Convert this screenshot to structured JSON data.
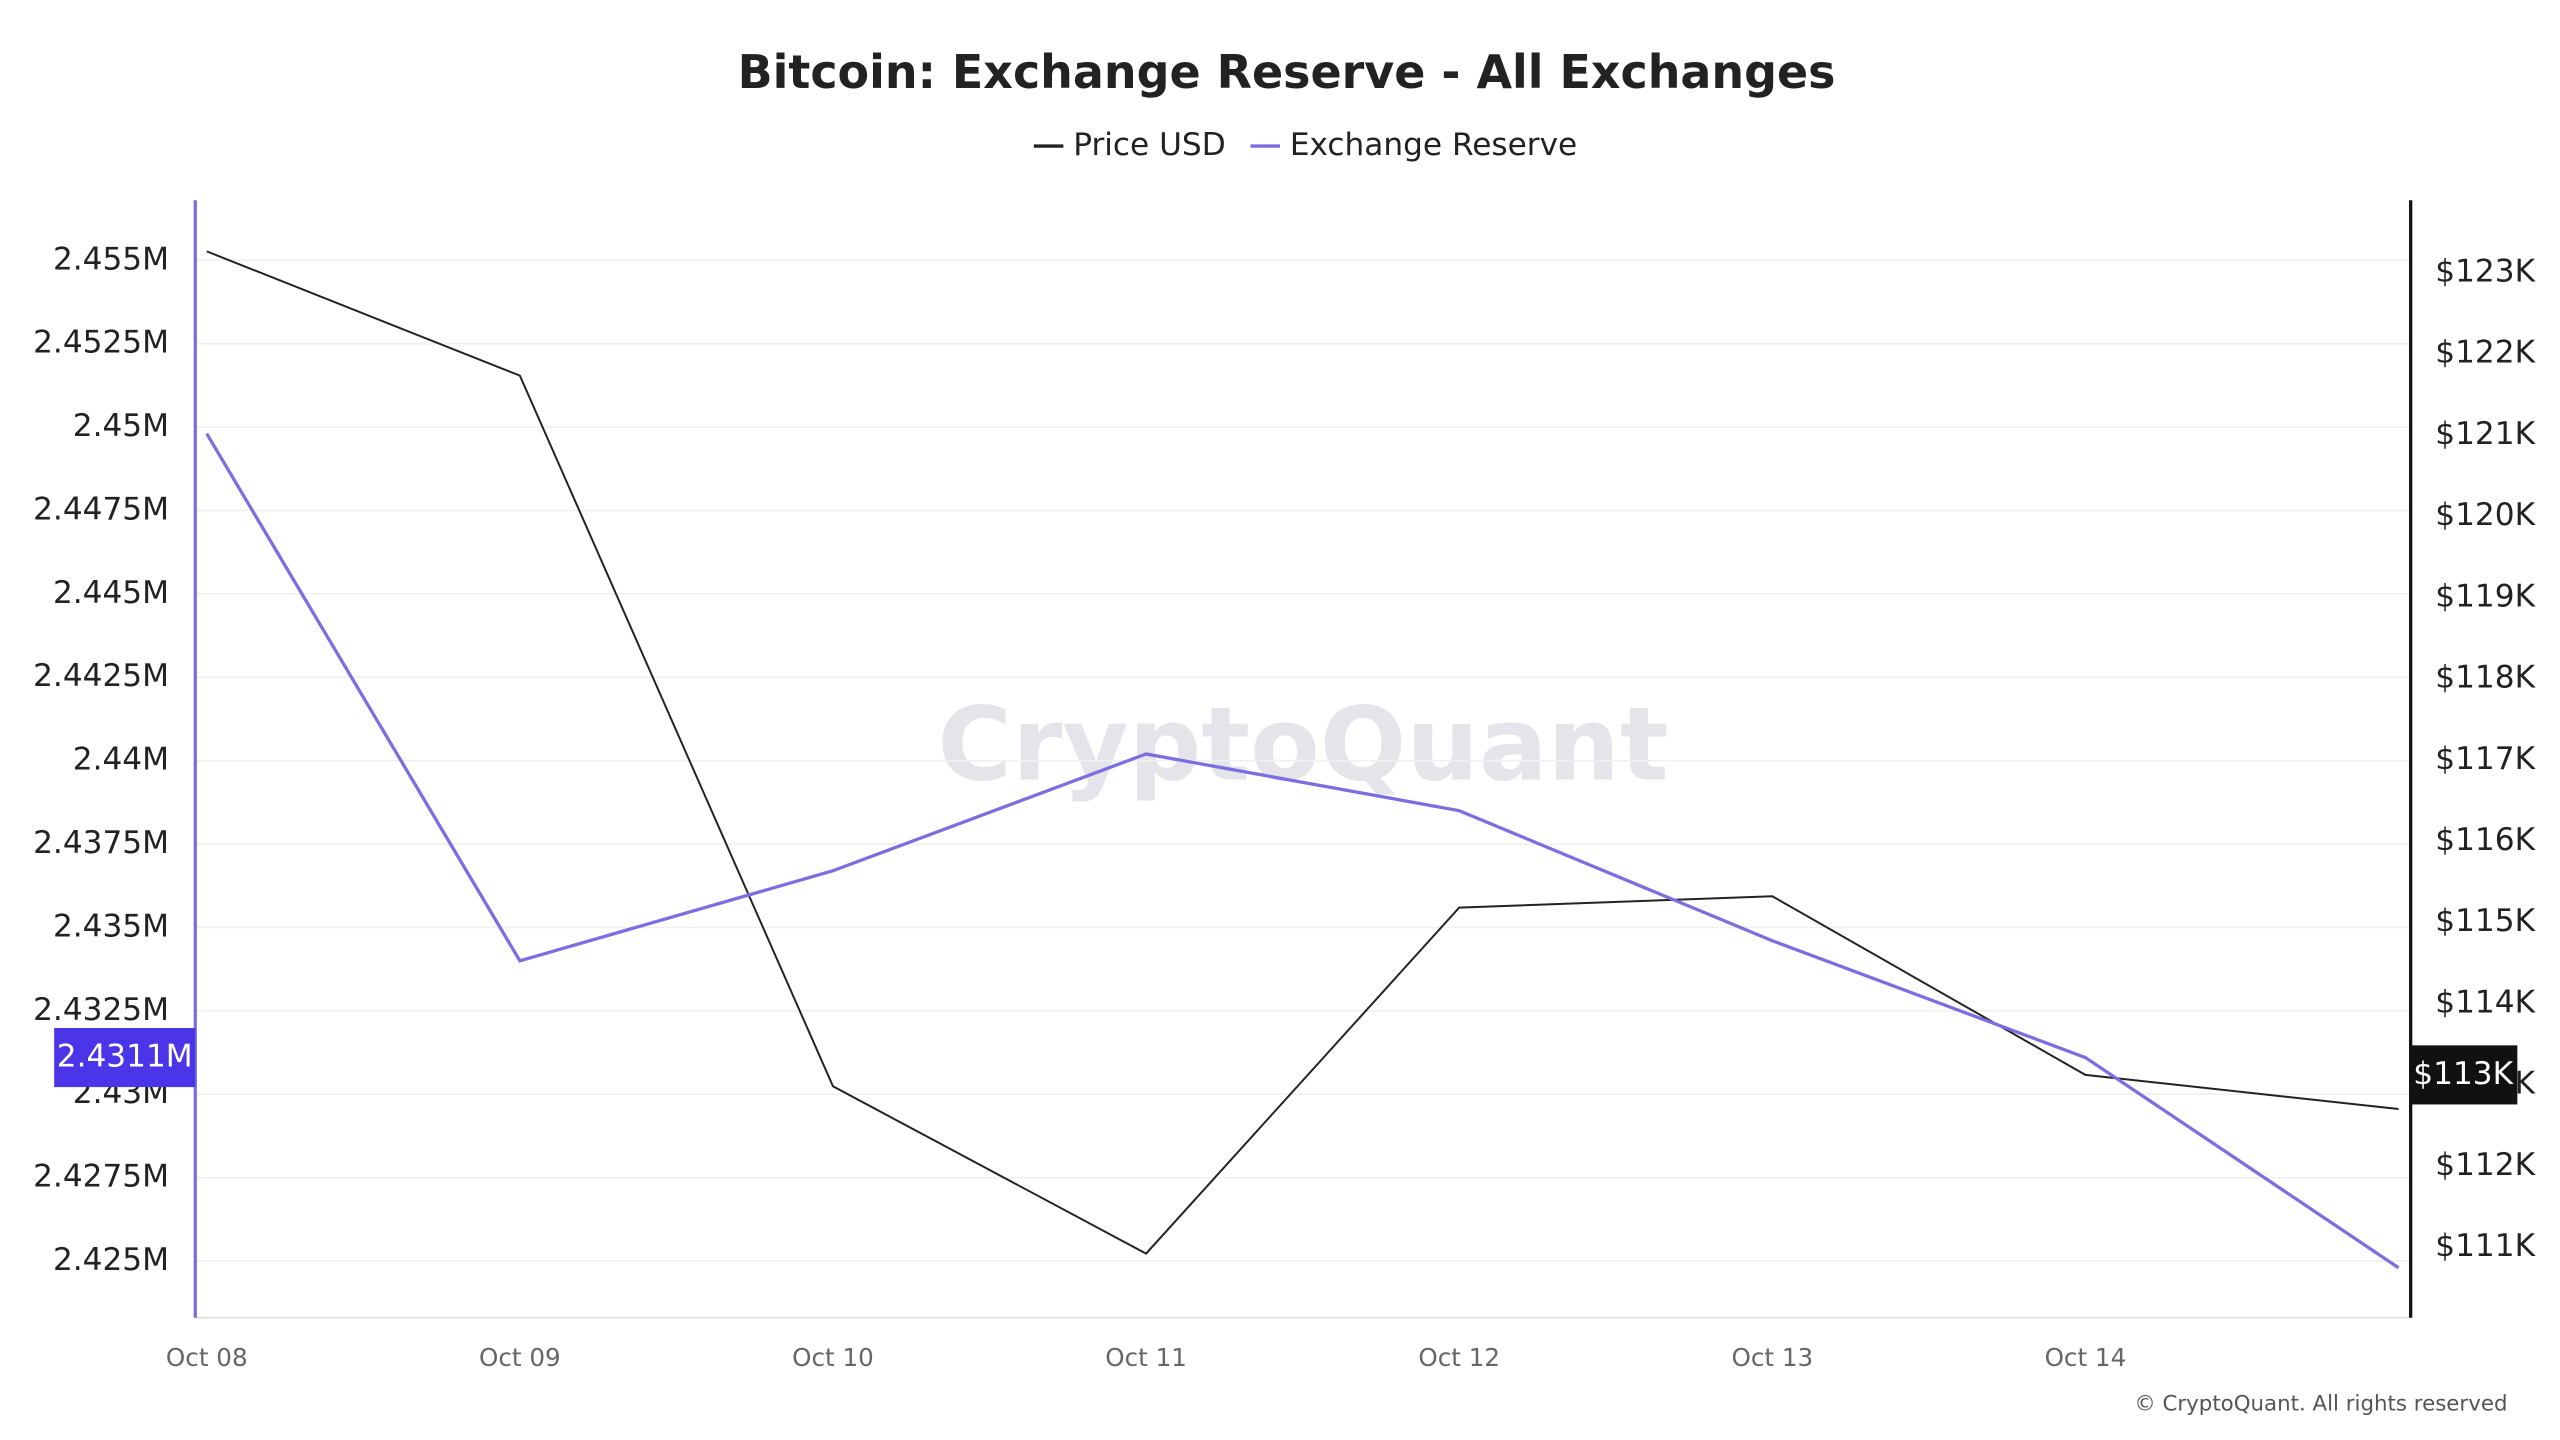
{
  "chart_data": {
    "type": "line",
    "title": "Bitcoin: Exchange Reserve - All Exchanges",
    "watermark": "CryptoQuant",
    "copyright": "© CryptoQuant. All rights reserved",
    "categories": [
      "Oct 08",
      "Oct 09",
      "Oct 10",
      "Oct 11",
      "Oct 12",
      "Oct 13",
      "Oct 14",
      null
    ],
    "series": [
      {
        "name": "Price USD",
        "color": "#222222",
        "axis": "y2",
        "values": [
          123260,
          121730,
          112980,
          110920,
          115180,
          115320,
          113120,
          112700
        ]
      },
      {
        "name": "Exchange Reserve",
        "color": "#7b6ee0",
        "axis": "y",
        "values": [
          2449800,
          2434000,
          2436700,
          2440200,
          2438500,
          2434600,
          2431100,
          2424800
        ]
      }
    ],
    "ylim": [
      2423300,
      2456800
    ],
    "yticks": [
      {
        "value": 2425000,
        "label": "2.425M"
      },
      {
        "value": 2427500,
        "label": "2.4275M"
      },
      {
        "value": 2430000,
        "label": "2.43M"
      },
      {
        "value": 2432500,
        "label": "2.4325M"
      },
      {
        "value": 2435000,
        "label": "2.435M"
      },
      {
        "value": 2437500,
        "label": "2.4375M"
      },
      {
        "value": 2440000,
        "label": "2.44M"
      },
      {
        "value": 2442500,
        "label": "2.4425M"
      },
      {
        "value": 2445000,
        "label": "2.445M"
      },
      {
        "value": 2447500,
        "label": "2.4475M"
      },
      {
        "value": 2450000,
        "label": "2.45M"
      },
      {
        "value": 2452500,
        "label": "2.4525M"
      },
      {
        "value": 2455000,
        "label": "2.455M"
      }
    ],
    "y2lim": [
      110130,
      123890
    ],
    "y2ticks": [
      {
        "value": 111000,
        "label": "$111K"
      },
      {
        "value": 112000,
        "label": "$112K"
      },
      {
        "value": 113000,
        "label": "$113K"
      },
      {
        "value": 114000,
        "label": "$114K"
      },
      {
        "value": 115000,
        "label": "$115K"
      },
      {
        "value": 116000,
        "label": "$116K"
      },
      {
        "value": 117000,
        "label": "$117K"
      },
      {
        "value": 118000,
        "label": "$118K"
      },
      {
        "value": 119000,
        "label": "$119K"
      },
      {
        "value": 120000,
        "label": "$120K"
      },
      {
        "value": 121000,
        "label": "$121K"
      },
      {
        "value": 122000,
        "label": "$122K"
      },
      {
        "value": 123000,
        "label": "$123K"
      }
    ],
    "cursor": {
      "y": {
        "value": 2431100,
        "label": "2.4311M",
        "color": "#4a35e8"
      },
      "y2": {
        "value": 113120,
        "label": "$113K",
        "color": "#111111"
      }
    },
    "grid": true
  }
}
